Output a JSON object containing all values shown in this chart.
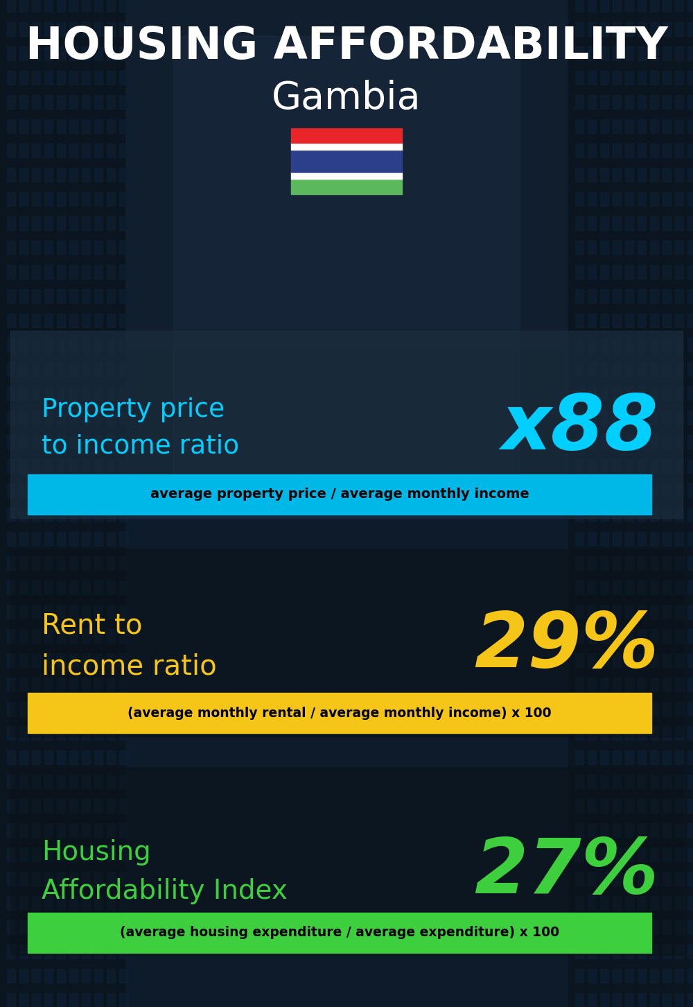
{
  "title_line1": "HOUSING AFFORDABILITY",
  "title_line2": "Gambia",
  "bg_color": "#0d1b2a",
  "section1_label": "Property price\nto income ratio",
  "section1_value": "x88",
  "section1_label_color": "#00cfff",
  "section1_value_color": "#00cfff",
  "section1_banner": "average property price / average monthly income",
  "section1_banner_bg": "#00b8e8",
  "section2_label": "Rent to\nincome ratio",
  "section2_value": "29%",
  "section2_label_color": "#f5c518",
  "section2_value_color": "#f5c518",
  "section2_banner": "(average monthly rental / average monthly income) x 100",
  "section2_banner_bg": "#f5c518",
  "section3_label": "Housing\nAffordability Index",
  "section3_value": "27%",
  "section3_label_color": "#3ecf3e",
  "section3_value_color": "#3ecf3e",
  "section3_banner": "(average housing expenditure / average expenditure) x 100",
  "section3_banner_bg": "#3ecf3e",
  "title_color": "#ffffff",
  "subtitle_color": "#ffffff",
  "flag_red": "#e8262a",
  "flag_blue": "#2b3f8b",
  "flag_green": "#5cb85c",
  "flag_white": "#ffffff"
}
